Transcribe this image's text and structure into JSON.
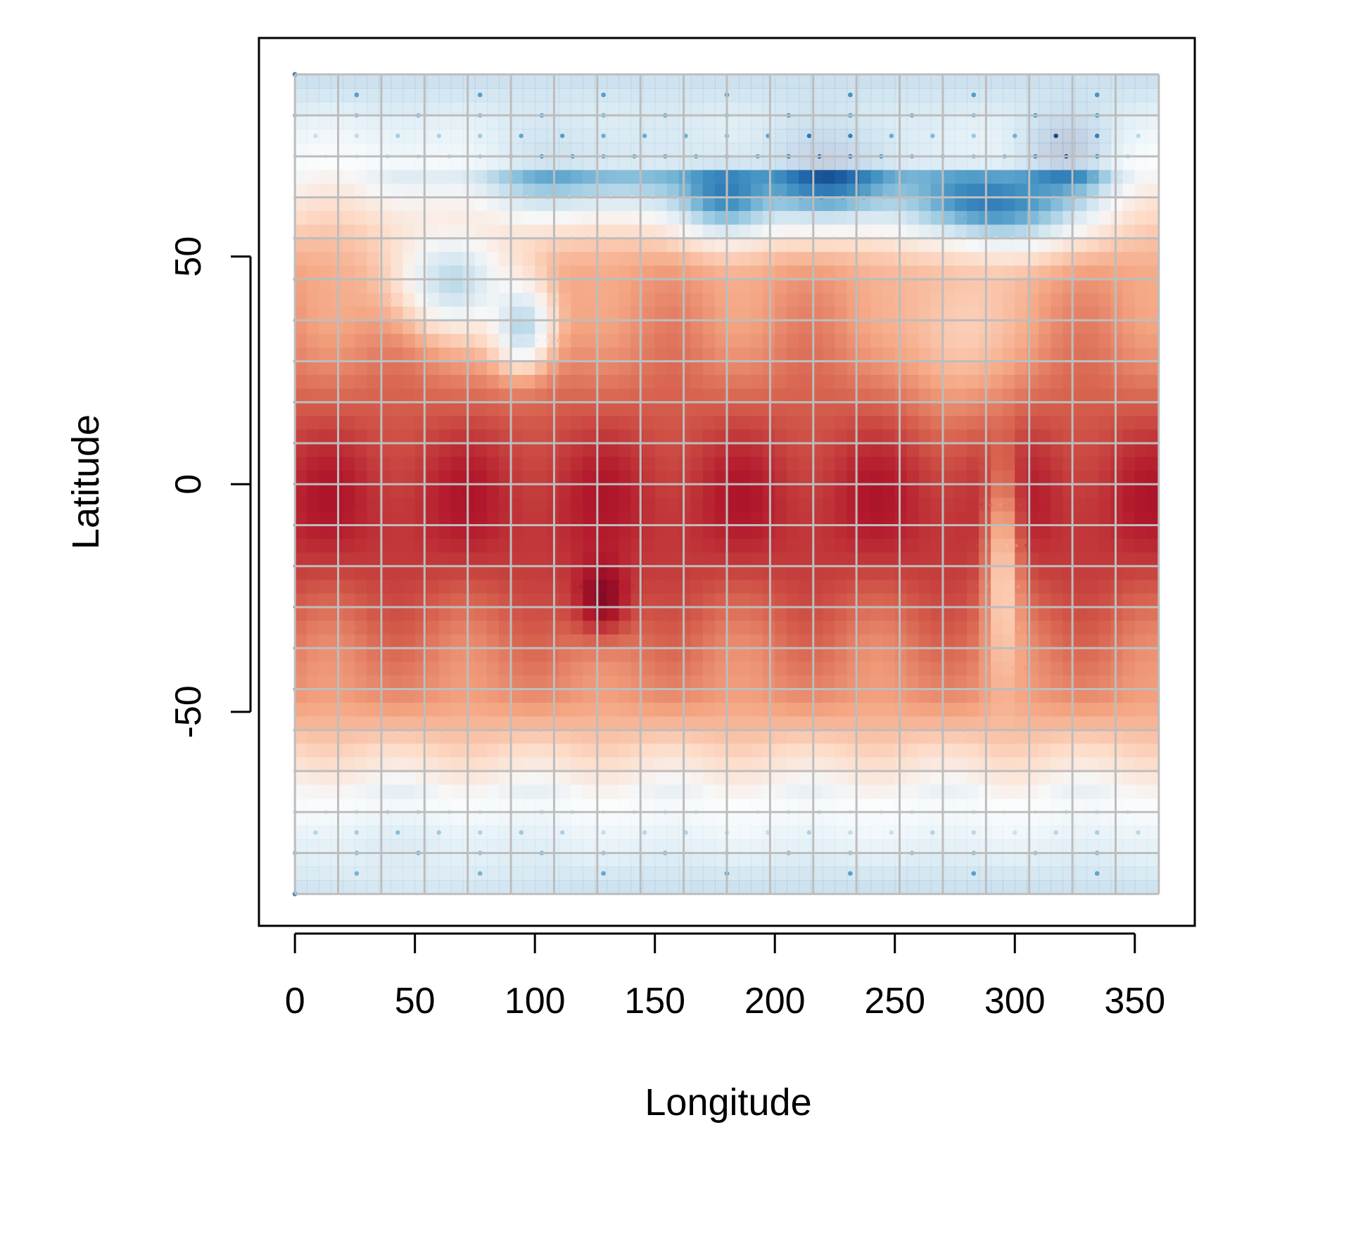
{
  "chart_data": {
    "type": "scatter",
    "title": "",
    "xlabel": "Longitude",
    "ylabel": "Latitude",
    "xlim": [
      -15,
      375
    ],
    "ylim": [
      -97,
      98
    ],
    "x_ticks": [
      0,
      50,
      100,
      150,
      200,
      250,
      300,
      350
    ],
    "y_ticks": [
      -50,
      0,
      50
    ],
    "grid": true,
    "grid_color": "#bdbdbd",
    "point_domain": {
      "lon": [
        0,
        360
      ],
      "lat": [
        -90,
        90
      ]
    },
    "gridlines": {
      "lon": [
        0,
        18,
        36,
        54,
        72,
        90,
        108,
        126,
        144,
        162,
        180,
        198,
        216,
        234,
        252,
        270,
        288,
        306,
        324,
        342,
        360
      ],
      "lat": [
        -90,
        -81,
        -72,
        -63,
        -54,
        -45,
        -36,
        -27,
        -18,
        -9,
        0,
        9,
        18,
        27,
        36,
        45,
        54,
        63,
        72,
        81,
        90
      ]
    },
    "colormap": {
      "name": "RdBu (reversed)",
      "stops": [
        "#08306b",
        "#2166ac",
        "#4393c3",
        "#92c5de",
        "#d1e5f0",
        "#f7f7f7",
        "#fddbc7",
        "#f4a582",
        "#d6604d",
        "#b2182b",
        "#67001f"
      ]
    },
    "value_field": {
      "range": [
        0,
        1
      ],
      "background": 0.7,
      "equatorial_band": {
        "lat_center": -5,
        "lat_sigma": 30,
        "amplitude": 0.18
      },
      "polar_falloff": {
        "lat_start": 45,
        "strength": 0.55
      },
      "anomalies": [
        {
          "lon": 120,
          "lat": 72,
          "sigma_lon": 35,
          "sigma_lat": 8,
          "value": 0.2
        },
        {
          "lon": 180,
          "lat": 65,
          "sigma_lon": 14,
          "sigma_lat": 7,
          "value": 0.14
        },
        {
          "lon": 225,
          "lat": 70,
          "sigma_lon": 24,
          "sigma_lat": 8,
          "value": 0.06
        },
        {
          "lon": 290,
          "lat": 62,
          "sigma_lon": 25,
          "sigma_lat": 7,
          "value": 0.12
        },
        {
          "lon": 320,
          "lat": 74,
          "sigma_lon": 14,
          "sigma_lat": 6,
          "value": 0.02
        },
        {
          "lon": 95,
          "lat": 35,
          "sigma_lon": 9,
          "sigma_lat": 7,
          "value": 0.32
        },
        {
          "lon": 65,
          "lat": 45,
          "sigma_lon": 18,
          "sigma_lat": 8,
          "value": 0.38
        },
        {
          "lon": 128,
          "lat": -25,
          "sigma_lon": 8,
          "sigma_lat": 6,
          "value": 0.98
        },
        {
          "lon": 50,
          "lat": -82,
          "sigma_lon": 45,
          "sigma_lat": 6,
          "value": 0.28
        },
        {
          "lon": 275,
          "lat": 35,
          "sigma_lon": 15,
          "sigma_lat": 12,
          "value": 0.6
        },
        {
          "lon": 295,
          "lat": -20,
          "sigma_lon": 5,
          "sigma_lat": 18,
          "value": 0.62
        }
      ]
    }
  }
}
